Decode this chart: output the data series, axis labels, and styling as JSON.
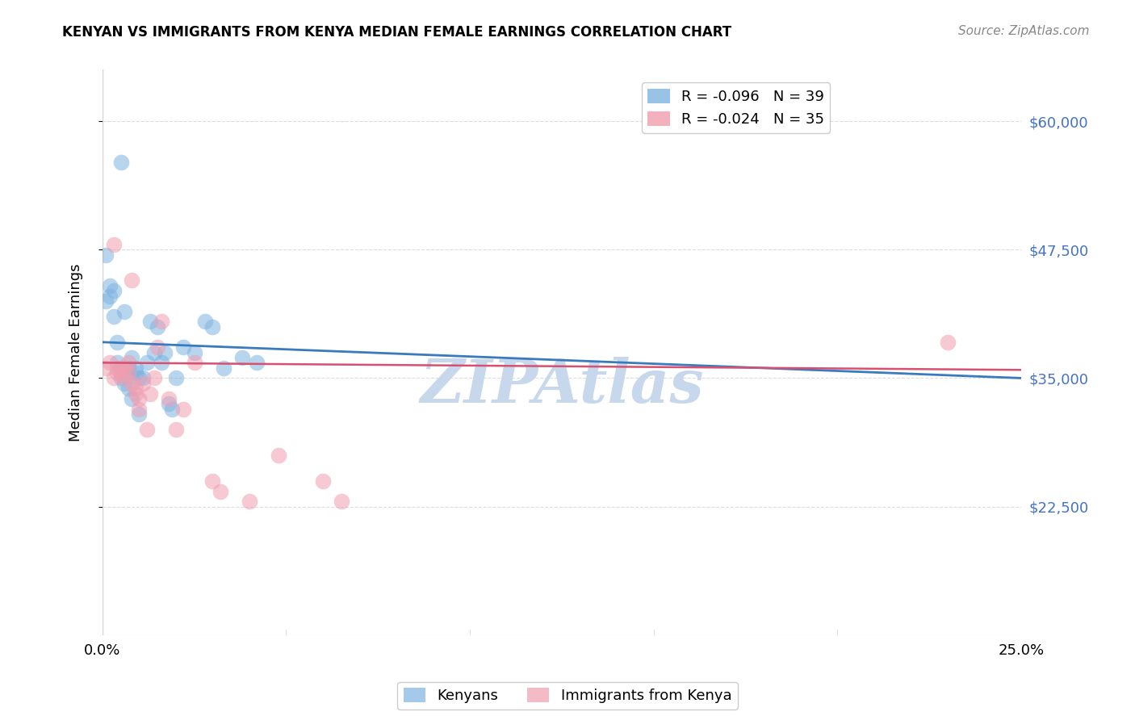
{
  "title": "KENYAN VS IMMIGRANTS FROM KENYA MEDIAN FEMALE EARNINGS CORRELATION CHART",
  "source": "Source: ZipAtlas.com",
  "ylabel": "Median Female Earnings",
  "x_min": 0.0,
  "x_max": 0.25,
  "y_min": 10000,
  "y_max": 65000,
  "y_ticks": [
    22500,
    35000,
    47500,
    60000
  ],
  "y_tick_labels": [
    "$22,500",
    "$35,000",
    "$47,500",
    "$60,000"
  ],
  "x_ticks": [
    0.0,
    0.05,
    0.1,
    0.15,
    0.2,
    0.25
  ],
  "x_tick_labels": [
    "0.0%",
    "",
    "",
    "",
    "",
    "25.0%"
  ],
  "legend_entries": [
    {
      "label": "R = -0.096   N = 39",
      "color": "#7EB3E0"
    },
    {
      "label": "R = -0.024   N = 35",
      "color": "#F09EB0"
    }
  ],
  "kenyans_color": "#7EB3E0",
  "immigrants_color": "#F09EB0",
  "regression_kenyan_color": "#3A7ABF",
  "regression_immigrant_color": "#D94F70",
  "watermark_text": "ZIPAtlas",
  "watermark_color": "#C8D8EC",
  "kenyans_x": [
    0.001,
    0.001,
    0.002,
    0.002,
    0.003,
    0.003,
    0.004,
    0.004,
    0.005,
    0.005,
    0.005,
    0.006,
    0.006,
    0.007,
    0.007,
    0.007,
    0.008,
    0.008,
    0.009,
    0.009,
    0.01,
    0.01,
    0.011,
    0.012,
    0.013,
    0.014,
    0.015,
    0.016,
    0.017,
    0.018,
    0.019,
    0.02,
    0.022,
    0.025,
    0.028,
    0.03,
    0.033,
    0.038,
    0.042
  ],
  "kenyans_y": [
    47000,
    42500,
    43000,
    44000,
    43500,
    41000,
    38500,
    36500,
    56000,
    36000,
    35000,
    34500,
    41500,
    34000,
    36000,
    35500,
    33000,
    37000,
    35500,
    36000,
    31500,
    35000,
    35000,
    36500,
    40500,
    37500,
    40000,
    36500,
    37500,
    32500,
    32000,
    35000,
    38000,
    37500,
    40500,
    40000,
    36000,
    37000,
    36500
  ],
  "immigrants_x": [
    0.001,
    0.002,
    0.003,
    0.003,
    0.004,
    0.004,
    0.005,
    0.005,
    0.006,
    0.006,
    0.007,
    0.007,
    0.008,
    0.008,
    0.009,
    0.009,
    0.01,
    0.01,
    0.011,
    0.012,
    0.013,
    0.014,
    0.015,
    0.016,
    0.018,
    0.02,
    0.022,
    0.025,
    0.03,
    0.032,
    0.04,
    0.048,
    0.06,
    0.065,
    0.23
  ],
  "immigrants_y": [
    36000,
    36500,
    35000,
    48000,
    35500,
    36000,
    35500,
    36000,
    35000,
    36000,
    35500,
    36500,
    34500,
    44500,
    34000,
    33500,
    32000,
    33000,
    34500,
    30000,
    33500,
    35000,
    38000,
    40500,
    33000,
    30000,
    32000,
    36500,
    25000,
    24000,
    23000,
    27500,
    25000,
    23000,
    38500
  ],
  "background_color": "#FFFFFF",
  "grid_color": "#DDDDDD",
  "regression_kenyan_x0": 0.0,
  "regression_kenyan_y0": 38500,
  "regression_kenyan_x1": 0.25,
  "regression_kenyan_y1": 35000,
  "regression_immigrant_x0": 0.0,
  "regression_immigrant_y0": 36500,
  "regression_immigrant_x1": 0.25,
  "regression_immigrant_y1": 35800
}
